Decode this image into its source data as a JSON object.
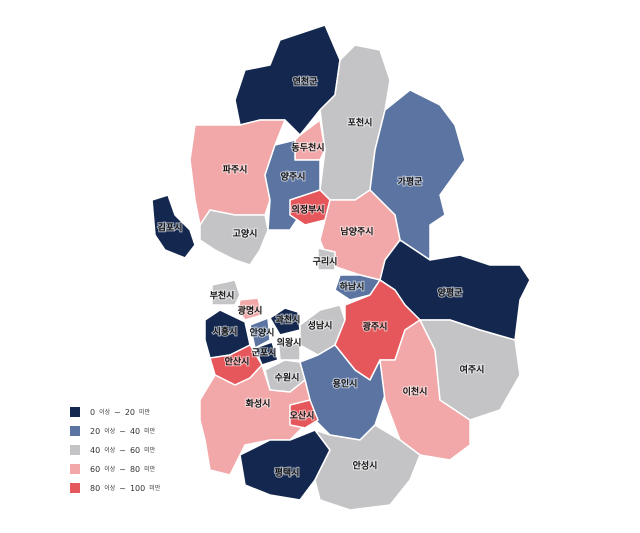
{
  "regions": [
    {
      "name": "연천군",
      "color": "#14284f"
    },
    {
      "name": "포천시",
      "color": "#c4c4c7"
    },
    {
      "name": "파주시",
      "color": "#f2a7a8"
    },
    {
      "name": "동두천시",
      "color": "#f2a7a8"
    },
    {
      "name": "양주시",
      "color": "#5b74a1"
    },
    {
      "name": "가평군",
      "color": "#5b74a1"
    },
    {
      "name": "김포시",
      "color": "#14284f"
    },
    {
      "name": "고양시",
      "color": "#c4c4c7"
    },
    {
      "name": "의정부시",
      "color": "#e6575c"
    },
    {
      "name": "남양주시",
      "color": "#f2a7a8"
    },
    {
      "name": "구리시",
      "color": "#c4c4c7"
    },
    {
      "name": "양평군",
      "color": "#14284f"
    },
    {
      "name": "하남시",
      "color": "#5b74a1"
    },
    {
      "name": "부천시",
      "color": "#c4c4c7"
    },
    {
      "name": "광명시",
      "color": "#f2a7a8"
    },
    {
      "name": "시흥시",
      "color": "#14284f"
    },
    {
      "name": "안양시",
      "color": "#5b74a1"
    },
    {
      "name": "과천시",
      "color": "#14284f"
    },
    {
      "name": "성남시",
      "color": "#c4c4c7"
    },
    {
      "name": "광주시",
      "color": "#e6575c"
    },
    {
      "name": "군포시",
      "color": "#14284f"
    },
    {
      "name": "의왕시",
      "color": "#c4c4c7"
    },
    {
      "name": "안산시",
      "color": "#e6575c"
    },
    {
      "name": "수원시",
      "color": "#c4c4c7"
    },
    {
      "name": "용인시",
      "color": "#5b74a1"
    },
    {
      "name": "이천시",
      "color": "#f2a7a8"
    },
    {
      "name": "여주시",
      "color": "#c4c4c7"
    },
    {
      "name": "화성시",
      "color": "#f2a7a8"
    },
    {
      "name": "오산시",
      "color": "#e6575c"
    },
    {
      "name": "평택시",
      "color": "#14284f"
    },
    {
      "name": "안성시",
      "color": "#c4c4c7"
    }
  ],
  "legend": [
    {
      "color": "#14284f",
      "from": 0,
      "from_text": "이상",
      "sep": "~",
      "to": 20,
      "to_text": "미만"
    },
    {
      "color": "#5b74a1",
      "from": 20,
      "from_text": "이상",
      "sep": "~",
      "to": 40,
      "to_text": "미만"
    },
    {
      "color": "#c4c4c7",
      "from": 40,
      "from_text": "이상",
      "sep": "~",
      "to": 60,
      "to_text": "미만"
    },
    {
      "color": "#f2a7a8",
      "from": 60,
      "from_text": "이상",
      "sep": "~",
      "to": 80,
      "to_text": "미만"
    },
    {
      "color": "#e6575c",
      "from": 80,
      "from_text": "이상",
      "sep": "~",
      "to": 100,
      "to_text": "미만"
    }
  ]
}
